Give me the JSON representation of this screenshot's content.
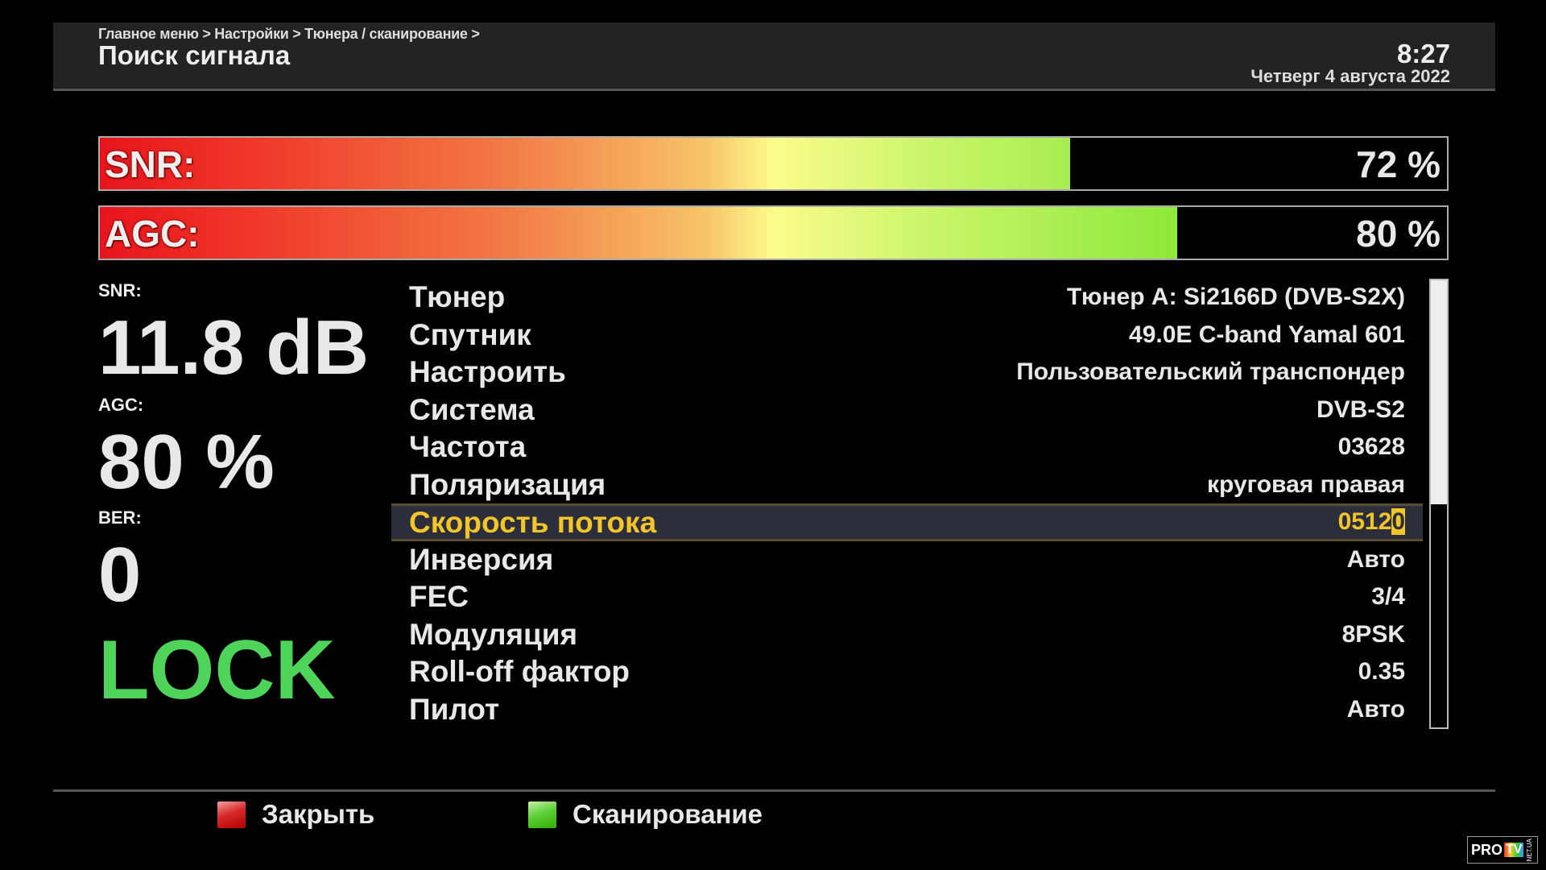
{
  "header": {
    "breadcrumb": "Главное меню > Настройки > Тюнера / сканирование >",
    "title": "Поиск сигнала",
    "time": "8:27",
    "date": "Четверг  4 августа 2022"
  },
  "bars": {
    "snr": {
      "label": "SNR:",
      "value_text": "72 %",
      "percent": 72
    },
    "agc": {
      "label": "AGC:",
      "value_text": "80 %",
      "percent": 80
    }
  },
  "stats": {
    "snr_label": "SNR:",
    "snr_value": "11.8 dB",
    "agc_label": "AGC:",
    "agc_value": "80 %",
    "ber_label": "BER:",
    "ber_value": "0",
    "lock": "LOCK"
  },
  "params": [
    {
      "label": "Тюнер",
      "value": "Тюнер A: Si2166D (DVB-S2X)"
    },
    {
      "label": "Спутник",
      "value": "49.0E C-band Yamal 601"
    },
    {
      "label": "Настроить",
      "value": "Пользовательский транспондер"
    },
    {
      "label": "Система",
      "value": "DVB-S2"
    },
    {
      "label": "Частота",
      "value": "03628"
    },
    {
      "label": "Поляризация",
      "value": "круговая правая"
    },
    {
      "label": "Скорость потока",
      "value": "0512",
      "cursor_char": "0",
      "selected": true
    },
    {
      "label": "Инверсия",
      "value": "Авто"
    },
    {
      "label": "FEC",
      "value": "3/4"
    },
    {
      "label": "Модуляция",
      "value": "8PSK"
    },
    {
      "label": "Roll-off фактор",
      "value": "0.35"
    },
    {
      "label": "Пилот",
      "value": "Авто"
    }
  ],
  "scrollbar": {
    "visible_fraction": 0.5,
    "position": 0
  },
  "footer": {
    "red_label": "Закрыть",
    "green_label": "Сканирование"
  },
  "watermark": {
    "text": "PRO TV NET.UA"
  },
  "colors": {
    "lock": "#4fd45a",
    "selected": "#f2c52a",
    "red_key": "#d62a2a",
    "green_key": "#5fd03a"
  }
}
